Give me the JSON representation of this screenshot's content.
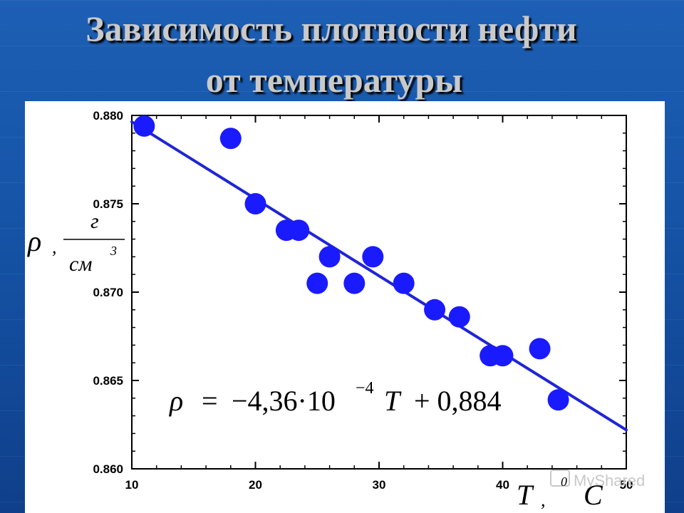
{
  "slide": {
    "title_line1": "Зависимость плотности нефти",
    "title_line2": "от температуры"
  },
  "watermark": "MyShared",
  "chart_data": {
    "type": "scatter",
    "xlim": [
      10,
      50
    ],
    "ylim": [
      0.86,
      0.88
    ],
    "x_ticks": [
      "10",
      "20",
      "30",
      "40",
      "50"
    ],
    "y_ticks": [
      "0.880",
      "0.875",
      "0.870",
      "0.865",
      "0.860"
    ],
    "ylabel": {
      "symbol": "ρ",
      "sep": ",",
      "unit_num": "г",
      "unit_den": "см",
      "unit_exp": "3"
    },
    "xlabel": {
      "symbol": "T",
      "sep": ",",
      "deg": "0",
      "unit": "C"
    },
    "equation": {
      "lhs": "ρ",
      "eq": "=",
      "coef": "−4,36·10",
      "exp": "−4",
      "var": "T",
      "rest": "+ 0,884"
    },
    "points": [
      {
        "x": 11.0,
        "y": 0.8794
      },
      {
        "x": 18.0,
        "y": 0.8787
      },
      {
        "x": 20.0,
        "y": 0.875
      },
      {
        "x": 22.5,
        "y": 0.8735
      },
      {
        "x": 23.5,
        "y": 0.8735
      },
      {
        "x": 25.0,
        "y": 0.8705
      },
      {
        "x": 26.0,
        "y": 0.872
      },
      {
        "x": 28.0,
        "y": 0.8705
      },
      {
        "x": 29.5,
        "y": 0.872
      },
      {
        "x": 32.0,
        "y": 0.8705
      },
      {
        "x": 34.5,
        "y": 0.869
      },
      {
        "x": 36.5,
        "y": 0.8686
      },
      {
        "x": 39.0,
        "y": 0.8664
      },
      {
        "x": 40.0,
        "y": 0.8664
      },
      {
        "x": 43.0,
        "y": 0.8668
      },
      {
        "x": 44.5,
        "y": 0.8639
      }
    ],
    "fit_line": {
      "slope": -0.000436,
      "intercept": 0.884,
      "x_range": [
        10,
        50
      ]
    },
    "marker_color": "#1a1aff",
    "line_color": "#1f25d6"
  }
}
